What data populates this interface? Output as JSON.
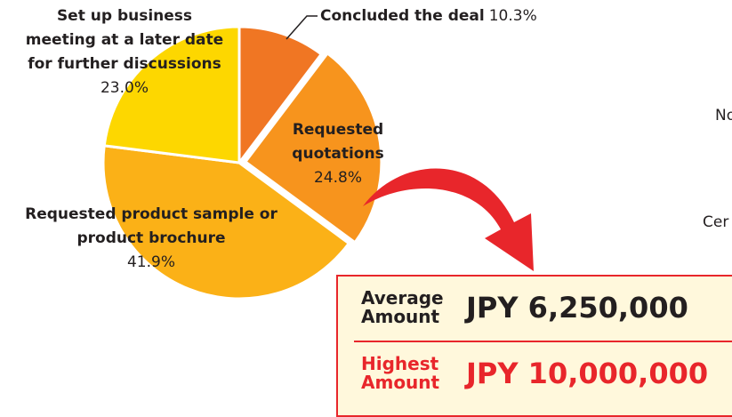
{
  "chart_data": {
    "type": "pie",
    "categories": [
      "Concluded the deal",
      "Requested quotations",
      "Requested product sample or product brochure",
      "Set up business meeting at a later date for further discussions"
    ],
    "values": [
      10.3,
      24.8,
      41.9,
      23.0
    ],
    "value_labels": [
      "10.3%",
      "24.8%",
      "41.9%",
      "23.0%"
    ],
    "colors": [
      "#f07623",
      "#f7941d",
      "#fbb117",
      "#fdd700"
    ]
  },
  "side_labels": [
    "No",
    "Cer"
  ],
  "summary": [
    {
      "label": "Average Amount",
      "value": "JPY 6,250,000",
      "color": "#231f20"
    },
    {
      "label": "Highest Amount",
      "value": "JPY 10,000,000",
      "color": "#e8262b"
    }
  ]
}
